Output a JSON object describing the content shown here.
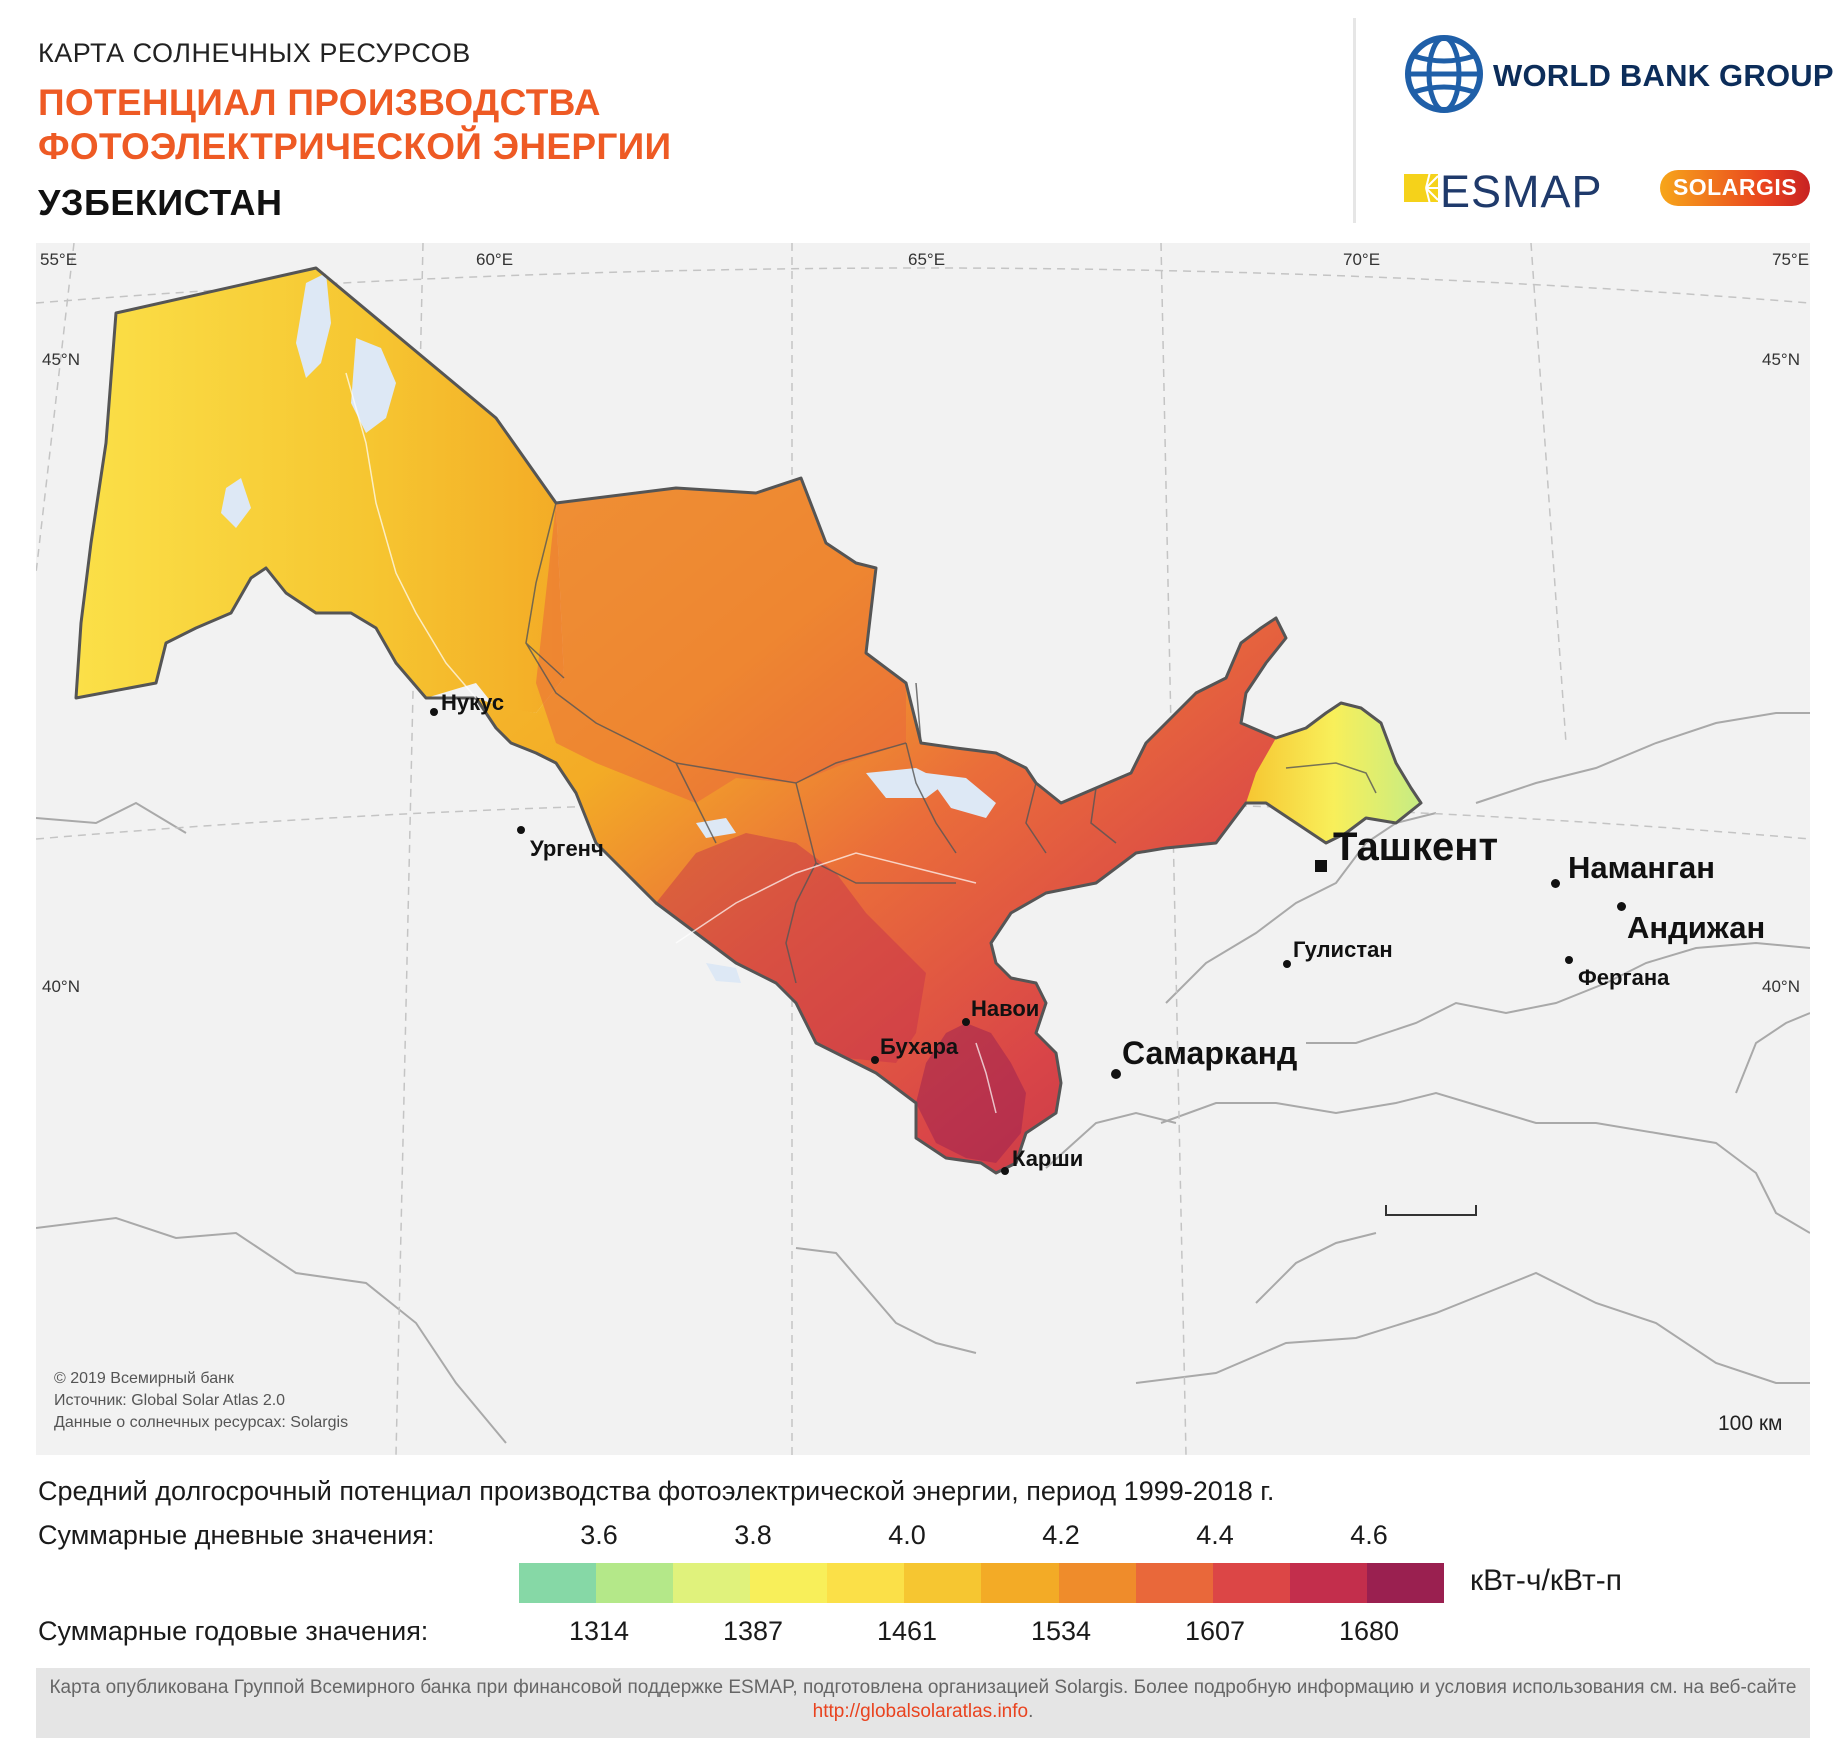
{
  "header": {
    "subtitle": "КАРТА СОЛНЕЧНЫХ РЕСУРСОВ",
    "title_line1": "ПОТЕНЦИАЛ ПРОИЗВОДСТВА",
    "title_line2": "ФОТОЭЛЕКТРИЧЕСКОЙ ЭНЕРГИИ",
    "country": "УЗБЕКИСТАН"
  },
  "logos": {
    "world_bank": "WORLD BANK GROUP",
    "esmap": "ESMAP",
    "solargis": "SOLARGIS"
  },
  "map": {
    "longitudes": [
      "55°E",
      "60°E",
      "65°E",
      "70°E",
      "75°E"
    ],
    "latitudes": [
      "45°N",
      "40°N"
    ],
    "cities": {
      "nukus": "Нукус",
      "urgench": "Ургенч",
      "tashkent": "Ташкент",
      "namangan": "Наманган",
      "andijan": "Андижан",
      "gulistan": "Гулистан",
      "fergana": "Фергана",
      "navoi": "Навои",
      "bukhara": "Бухара",
      "samarkand": "Самарканд",
      "karshi": "Карши"
    },
    "credits": [
      "© 2019 Всемирный банк",
      "Источник: Global Solar Atlas 2.0",
      "Данные о солнечных ресурсах: Solargis"
    ],
    "scale_label": "100 км",
    "colors": {
      "sea": "#f2f2f2",
      "lake": "#dde8f5",
      "border": "#555555"
    }
  },
  "legend": {
    "heading": "Средний долгосрочный потенциал производства фотоэлектрической энергии, период 1999-2018 г.",
    "daily_label": "Суммарные дневные значения:",
    "daily_values": [
      "3.6",
      "3.8",
      "4.0",
      "4.2",
      "4.4",
      "4.6"
    ],
    "yearly_label": "Суммарные годовые значения:",
    "yearly_values": [
      "1314",
      "1387",
      "1461",
      "1534",
      "1607",
      "1680"
    ],
    "unit": "кВт-ч/кВт-п",
    "colors": [
      "#86d8a6",
      "#b4e889",
      "#e0f27c",
      "#f8ef5a",
      "#fbe048",
      "#f6c631",
      "#f3ab26",
      "#ef8c2b",
      "#e9683a",
      "#dc4646",
      "#c32e4c",
      "#9a2050"
    ]
  },
  "footer": {
    "text": "Карта опубликована Группой Всемирного банка при финансовой поддержке ESMAP, подготовлена организацией Solargis. Более подробную информацию и условия использования см. на веб-сайте",
    "link": "http://globalsolaratlas.info",
    "end": "."
  }
}
